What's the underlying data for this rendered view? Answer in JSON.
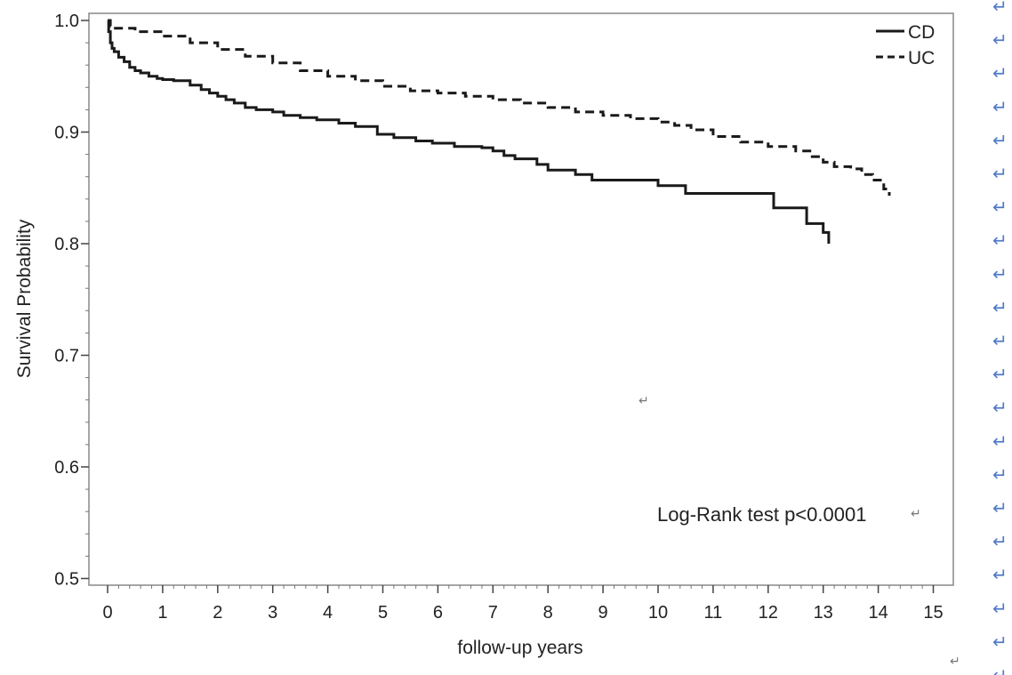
{
  "chart_data": {
    "type": "line",
    "xlabel": "follow-up years",
    "ylabel": "Survival Probability",
    "xlim": [
      0,
      15
    ],
    "ylim": [
      0.5,
      1.0
    ],
    "xticks": [
      "0",
      "1",
      "2",
      "3",
      "4",
      "5",
      "6",
      "7",
      "8",
      "9",
      "10",
      "11",
      "12",
      "13",
      "14",
      "15"
    ],
    "yticks": [
      "0.5",
      "0.6",
      "0.7",
      "0.8",
      "0.9",
      "1.0"
    ],
    "grid": false,
    "legend_position": "top-right",
    "step": true,
    "series": [
      {
        "name": "CD",
        "line_style": "solid",
        "color": "#1a1a1a",
        "x": [
          0,
          0.02,
          0.05,
          0.08,
          0.12,
          0.2,
          0.3,
          0.4,
          0.5,
          0.6,
          0.75,
          0.9,
          1.0,
          1.2,
          1.5,
          1.7,
          1.85,
          2.0,
          2.15,
          2.3,
          2.5,
          2.7,
          3.0,
          3.2,
          3.5,
          3.8,
          4.2,
          4.5,
          4.9,
          5.2,
          5.6,
          5.9,
          6.3,
          6.8,
          7.0,
          7.2,
          7.4,
          7.8,
          8.0,
          8.5,
          8.8,
          10.0,
          10.5,
          12.1,
          12.7,
          13.0,
          13.1
        ],
        "y": [
          1.0,
          0.99,
          0.98,
          0.975,
          0.972,
          0.967,
          0.963,
          0.958,
          0.955,
          0.953,
          0.95,
          0.948,
          0.947,
          0.946,
          0.942,
          0.938,
          0.935,
          0.932,
          0.929,
          0.926,
          0.922,
          0.92,
          0.918,
          0.915,
          0.913,
          0.911,
          0.908,
          0.905,
          0.898,
          0.895,
          0.892,
          0.89,
          0.887,
          0.886,
          0.883,
          0.879,
          0.876,
          0.871,
          0.866,
          0.862,
          0.857,
          0.852,
          0.845,
          0.832,
          0.818,
          0.81,
          0.8
        ]
      },
      {
        "name": "UC",
        "line_style": "dashed",
        "color": "#1a1a1a",
        "x": [
          0,
          0.05,
          0.1,
          0.5,
          1.0,
          1.5,
          2.0,
          2.5,
          3.0,
          3.5,
          4.0,
          4.5,
          5.0,
          5.5,
          6.0,
          6.5,
          7.0,
          7.5,
          8.0,
          8.5,
          9.0,
          9.5,
          10.0,
          10.3,
          10.6,
          11.0,
          11.5,
          12.0,
          12.5,
          12.8,
          13.0,
          13.2,
          13.5,
          13.7,
          13.9,
          14.1,
          14.2
        ],
        "y": [
          1.0,
          0.995,
          0.993,
          0.99,
          0.986,
          0.98,
          0.974,
          0.968,
          0.962,
          0.955,
          0.95,
          0.946,
          0.941,
          0.937,
          0.935,
          0.932,
          0.929,
          0.926,
          0.922,
          0.918,
          0.915,
          0.912,
          0.909,
          0.906,
          0.902,
          0.896,
          0.891,
          0.887,
          0.883,
          0.878,
          0.873,
          0.869,
          0.867,
          0.862,
          0.857,
          0.849,
          0.843
        ]
      }
    ],
    "annotations": [
      {
        "text": "Log-Rank test p<0.0001",
        "mark": "↵"
      }
    ]
  },
  "return_mark": "↵"
}
